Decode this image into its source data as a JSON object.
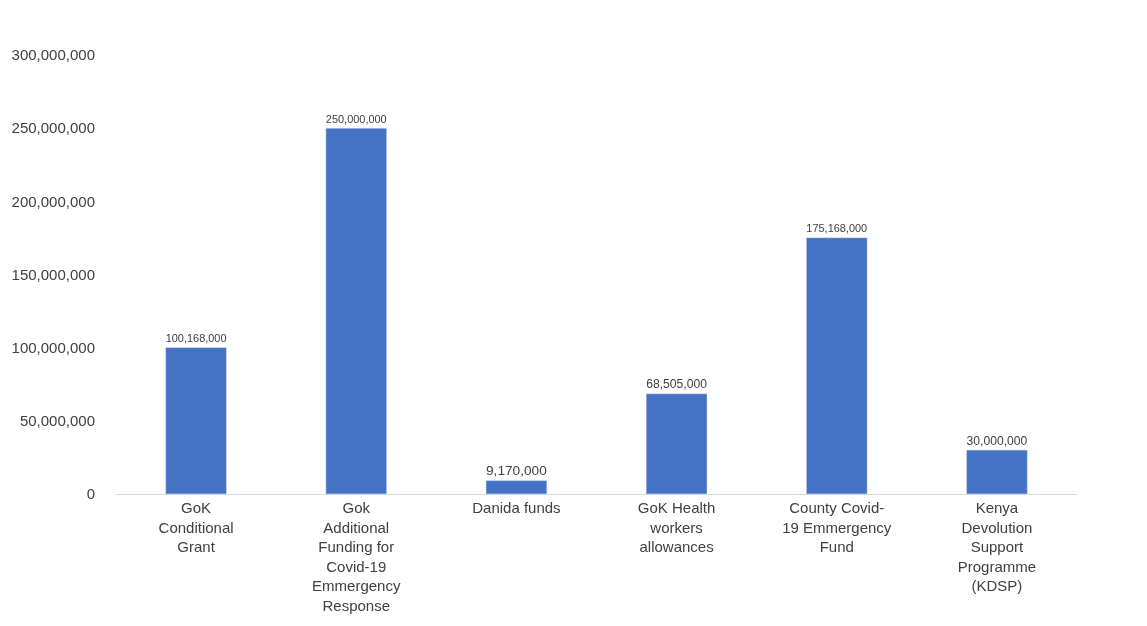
{
  "chart_data": {
    "type": "bar",
    "categories": [
      "GoK Conditional Grant",
      "Gok Additional Funding for Covid-19 Emmergency Response",
      "Danida funds",
      "GoK Health workers allowances",
      "County Covid-19 Emmergency Fund",
      "Kenya Devolution Support Programme (KDSP)"
    ],
    "values": [
      100168000,
      250000000,
      9170000,
      68505000,
      175168000,
      30000000
    ],
    "value_labels": [
      "100,168,000",
      "250,000,000",
      "9,170,000",
      "68,505,000",
      "175,168,000",
      "30,000,000"
    ],
    "color": "#4472c4",
    "ylim": [
      0,
      300000000
    ],
    "yticks": [
      {
        "value": 0,
        "label": "0"
      },
      {
        "value": 50000000,
        "label": "50,000,000"
      },
      {
        "value": 100000000,
        "label": "100,000,000"
      },
      {
        "value": 150000000,
        "label": "150,000,000"
      },
      {
        "value": 200000000,
        "label": "200,000,000"
      },
      {
        "value": 250000000,
        "label": "250,000,000"
      },
      {
        "value": 300000000,
        "label": "300,000,000"
      }
    ],
    "grid": false,
    "legend": false
  }
}
